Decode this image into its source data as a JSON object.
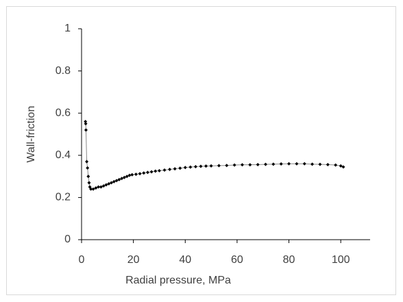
{
  "chart_data": {
    "type": "line",
    "x_label": "Radial pressure, MPa",
    "y_label": "Wall-friction",
    "xlim": [
      0,
      110
    ],
    "xticks": [
      0,
      20,
      40,
      60,
      80,
      100
    ],
    "ylim": [
      0,
      1
    ],
    "yticks": [
      0,
      0.2,
      0.4,
      0.6,
      0.8,
      1
    ],
    "series": [
      {
        "color": "#000000",
        "x": [
          1.5,
          1.6,
          1.7,
          2.0,
          2.3,
          2.6,
          2.9,
          3.2,
          3.6,
          4.5,
          5.5,
          6.5,
          7.5,
          8.5,
          9.5,
          10.5,
          11.5,
          12.5,
          13.5,
          14.5,
          15.5,
          16.5,
          17.5,
          18.5,
          19.5,
          21,
          22.5,
          24,
          25.5,
          27,
          28.5,
          30,
          32,
          34,
          36,
          38,
          40,
          42,
          44,
          46,
          48,
          50,
          53,
          56,
          59,
          62,
          65,
          68,
          71,
          74,
          77,
          80,
          83,
          86,
          89,
          92,
          95,
          98,
          100,
          101
        ],
        "values": [
          0.56,
          0.55,
          0.52,
          0.37,
          0.34,
          0.3,
          0.27,
          0.25,
          0.24,
          0.24,
          0.245,
          0.25,
          0.25,
          0.255,
          0.26,
          0.265,
          0.27,
          0.275,
          0.28,
          0.285,
          0.29,
          0.295,
          0.3,
          0.305,
          0.308,
          0.31,
          0.313,
          0.316,
          0.319,
          0.322,
          0.325,
          0.327,
          0.33,
          0.333,
          0.336,
          0.339,
          0.342,
          0.344,
          0.346,
          0.348,
          0.349,
          0.35,
          0.351,
          0.352,
          0.354,
          0.355,
          0.355,
          0.356,
          0.357,
          0.358,
          0.359,
          0.36,
          0.36,
          0.36,
          0.358,
          0.357,
          0.356,
          0.354,
          0.35,
          0.345
        ]
      }
    ]
  }
}
